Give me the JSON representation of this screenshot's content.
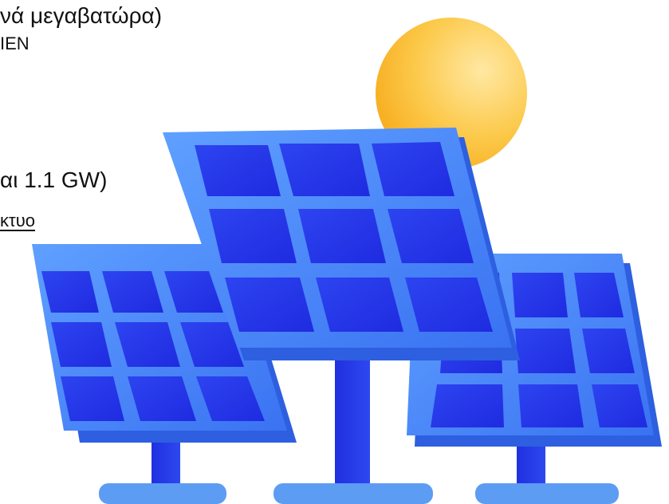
{
  "text_lines": {
    "line1": "νά μεγαβατώρα)",
    "line2": "ΙΕΝ",
    "line3": "αι 1.1 GW)",
    "line4_link": "κτυο"
  },
  "illustration": {
    "description_icon": "solar-panels-with-sun-illustration",
    "panel_count": 3,
    "colors": {
      "sun_light": "#ffe8a3",
      "sun_dark": "#f6a91a",
      "panel_frame": "#3f7df6",
      "panel_frame_light": "#5fa0ff",
      "cell_dark": "#1f2be0",
      "cell_mid": "#2d44f0",
      "stand": "#2436e6",
      "base": "#5d9cf3"
    }
  }
}
